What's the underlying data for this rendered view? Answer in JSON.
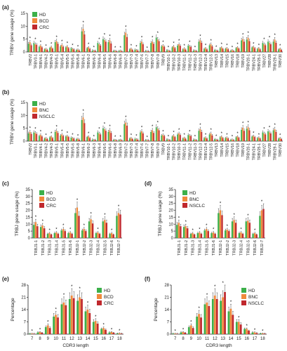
{
  "colors": {
    "hd": "#3cb04a",
    "g2": "#f08a3c",
    "g3": "#c0282d",
    "axis": "#222222",
    "star": "#000000"
  },
  "chart_data": [
    {
      "panel": "(a)",
      "type": "bar",
      "ylabel": "TRBV gene usage (%)",
      "yticks": [
        0,
        5,
        10,
        15
      ],
      "ylim": [
        0,
        15
      ],
      "legend": [
        "HD",
        "BCD",
        "CRC"
      ],
      "categories": [
        "TRBV2",
        "TRBV3-1",
        "TRBV4-1",
        "TRBV4-2",
        "TRBV4-3",
        "TRBV5-1",
        "TRBV5-4",
        "TRBV5-5",
        "TRBV5-6",
        "TRBV5-8",
        "TRBV6-1",
        "TRBV6-2",
        "TRBV6-3",
        "TRBV6-4",
        "TRBV6-5",
        "TRBV6-6",
        "TRBV6-8",
        "TRBV6-9",
        "TRBV7-2",
        "TRBV7-3",
        "TRBV7-4",
        "TRBV7-6",
        "TRBV7-7",
        "TRBV7-8",
        "TRBV7-9",
        "TRBV9",
        "TRBV10-1",
        "TRBV10-2",
        "TRBV10-3",
        "TRBV11-1",
        "TRBV11-2",
        "TRBV11-3",
        "TRBV12-3",
        "TRBV12-4",
        "TRBV12-5",
        "TRBV13",
        "TRBV14",
        "TRBV15",
        "TRBV16",
        "TRBV18",
        "TRBV19",
        "TRBV20-1",
        "TRBV24-1",
        "TRBV25-1",
        "TRBV27",
        "TRBV28",
        "TRBV29-1",
        "TRBV30"
      ],
      "series": [
        {
          "name": "HD",
          "values": [
            3.2,
            3.5,
            2.0,
            1.0,
            1.6,
            3.8,
            2.2,
            1.8,
            1.5,
            0.8,
            8.0,
            1.5,
            0.6,
            3.5,
            5.0,
            3.8,
            0.5,
            0.4,
            6.5,
            1.0,
            0.9,
            3.5,
            0.4,
            3.5,
            5.6,
            2.2,
            0.7,
            1.8,
            2.5,
            1.0,
            2.5,
            0.6,
            4.0,
            1.2,
            2.6,
            0.8,
            1.5,
            1.2,
            0.5,
            1.5,
            4.5,
            4.8,
            1.8,
            1.2,
            3.5,
            4.0,
            4.0,
            1.0
          ]
        },
        {
          "name": "BCD",
          "values": [
            3.8,
            3.0,
            2.5,
            1.2,
            2.0,
            4.2,
            2.8,
            2.2,
            1.2,
            0.9,
            9.0,
            1.8,
            0.4,
            3.0,
            4.6,
            4.5,
            0.4,
            0.5,
            7.5,
            1.3,
            0.7,
            4.0,
            0.3,
            4.0,
            4.8,
            2.5,
            0.5,
            2.2,
            3.0,
            1.4,
            2.2,
            0.5,
            4.5,
            1.5,
            3.0,
            0.5,
            1.8,
            1.5,
            0.7,
            1.8,
            5.0,
            5.5,
            2.0,
            1.5,
            3.0,
            3.5,
            4.8,
            1.3
          ]
        },
        {
          "name": "CRC",
          "values": [
            2.6,
            2.8,
            1.8,
            0.8,
            1.3,
            3.2,
            2.0,
            1.5,
            1.0,
            0.6,
            6.8,
            1.2,
            0.5,
            2.5,
            4.0,
            3.3,
            0.3,
            0.3,
            5.8,
            0.8,
            0.6,
            3.0,
            0.3,
            3.2,
            4.2,
            2.0,
            0.4,
            1.5,
            2.4,
            0.9,
            2.0,
            0.4,
            3.6,
            1.0,
            2.2,
            0.5,
            1.2,
            1.0,
            0.4,
            1.3,
            4.0,
            4.2,
            1.5,
            1.0,
            2.6,
            3.0,
            3.6,
            0.8
          ]
        }
      ]
    },
    {
      "panel": "(b)",
      "type": "bar",
      "ylabel": "TRBV gene usage (%)",
      "yticks": [
        0,
        5,
        10,
        15
      ],
      "ylim": [
        0,
        15
      ],
      "legend": [
        "HD",
        "BNC",
        "NSCLC"
      ],
      "categories": [
        "TRBV2",
        "TRBV3-1",
        "TRBV4-1",
        "TRBV4-2",
        "TRBV4-3",
        "TRBV5-1",
        "TRBV5-4",
        "TRBV5-5",
        "TRBV5-6",
        "TRBV5-8",
        "TRBV6-1",
        "TRBV6-2",
        "TRBV6-3",
        "TRBV6-4",
        "TRBV6-5",
        "TRBV6-6",
        "TRBV6-8",
        "TRBV6-9",
        "TRBV7-2",
        "TRBV7-3",
        "TRBV7-4",
        "TRBV7-6",
        "TRBV7-7",
        "TRBV7-8",
        "TRBV7-9",
        "TRBV9",
        "TRBV10-1",
        "TRBV10-2",
        "TRBV10-3",
        "TRBV11-1",
        "TRBV11-2",
        "TRBV11-3",
        "TRBV12-3",
        "TRBV12-4",
        "TRBV12-5",
        "TRBV13",
        "TRBV14",
        "TRBV15",
        "TRBV16",
        "TRBV18",
        "TRBV19",
        "TRBV20-1",
        "TRBV24-1",
        "TRBV25-1",
        "TRBV27",
        "TRBV28",
        "TRBV29-1",
        "TRBV30"
      ],
      "series": [
        {
          "name": "HD",
          "values": [
            3.0,
            3.4,
            2.0,
            1.0,
            1.5,
            3.6,
            2.2,
            1.8,
            1.4,
            0.8,
            8.2,
            1.6,
            0.6,
            3.4,
            5.0,
            3.6,
            0.5,
            0.4,
            6.6,
            1.0,
            0.9,
            3.4,
            0.4,
            3.6,
            5.4,
            2.2,
            0.7,
            1.8,
            2.6,
            1.0,
            2.4,
            0.6,
            4.0,
            1.2,
            2.6,
            0.8,
            1.5,
            1.2,
            0.5,
            1.5,
            4.4,
            4.8,
            1.8,
            1.2,
            3.4,
            3.8,
            4.2,
            1.0
          ]
        },
        {
          "name": "BNC",
          "values": [
            3.6,
            3.2,
            2.4,
            1.2,
            1.8,
            4.0,
            2.6,
            2.0,
            1.2,
            0.9,
            9.2,
            1.8,
            0.4,
            3.0,
            4.6,
            4.2,
            0.4,
            0.5,
            7.2,
            1.2,
            0.7,
            3.8,
            0.3,
            4.2,
            4.8,
            2.4,
            0.5,
            2.2,
            3.0,
            1.3,
            2.2,
            0.5,
            4.6,
            1.4,
            3.0,
            0.5,
            1.8,
            1.4,
            0.6,
            1.8,
            5.2,
            5.4,
            2.0,
            1.4,
            3.0,
            3.4,
            4.6,
            1.2
          ]
        },
        {
          "name": "NSCLC",
          "values": [
            2.8,
            2.8,
            1.8,
            0.8,
            1.2,
            3.2,
            2.0,
            1.6,
            1.0,
            0.6,
            7.0,
            1.2,
            0.5,
            2.6,
            4.0,
            3.2,
            0.3,
            0.3,
            6.0,
            0.8,
            0.6,
            3.0,
            0.3,
            3.2,
            4.2,
            2.0,
            0.4,
            1.6,
            2.4,
            0.9,
            2.0,
            0.4,
            3.6,
            1.0,
            2.2,
            0.5,
            1.2,
            1.0,
            0.4,
            1.3,
            4.0,
            4.2,
            1.6,
            1.0,
            2.6,
            3.0,
            3.6,
            0.8
          ]
        }
      ]
    },
    {
      "panel": "(c)",
      "type": "bar",
      "ylabel": "TRBJ gene usage (%)",
      "yticks": [
        0,
        5,
        10,
        15,
        20,
        25,
        30,
        35
      ],
      "ylim": [
        0,
        35
      ],
      "legend": [
        "HD",
        "BCD",
        "CRC"
      ],
      "categories": [
        "TRBJ1-1",
        "TRBJ1-2",
        "TRBJ1-3",
        "TRBJ1-4",
        "TRBJ1-5",
        "TRBJ1-6",
        "TRBJ2-1",
        "TRBJ2-2",
        "TRBJ2-3",
        "TRBJ2-4",
        "TRBJ2-5",
        "TRBJ2-6",
        "TRBJ2-7"
      ],
      "series": [
        {
          "name": "HD",
          "values": [
            9.5,
            8.0,
            3.0,
            3.5,
            5.5,
            3.5,
            18.0,
            5.5,
            12.0,
            3.5,
            12.0,
            3.0,
            16.0
          ]
        },
        {
          "name": "BCD",
          "values": [
            11.5,
            9.0,
            3.5,
            4.0,
            6.5,
            4.0,
            22.0,
            6.5,
            13.5,
            4.0,
            13.0,
            3.5,
            18.0
          ]
        },
        {
          "name": "CRC",
          "values": [
            8.5,
            7.0,
            2.5,
            3.0,
            5.0,
            3.0,
            16.0,
            5.0,
            10.5,
            3.0,
            11.0,
            2.5,
            17.0
          ]
        }
      ]
    },
    {
      "panel": "(d)",
      "type": "bar",
      "ylabel": "TRBJ gene usage (%)",
      "yticks": [
        0,
        5,
        10,
        15,
        20,
        25,
        30,
        35
      ],
      "ylim": [
        0,
        35
      ],
      "legend": [
        "HD",
        "BNC",
        "NSCLC"
      ],
      "categories": [
        "TRBJ1-1",
        "TRBJ1-2",
        "TRBJ1-3",
        "TRBJ1-4",
        "TRBJ1-5",
        "TRBJ1-6",
        "TRBJ2-1",
        "TRBJ2-2",
        "TRBJ2-3",
        "TRBJ2-4",
        "TRBJ2-5",
        "TRBJ2-6",
        "TRBJ2-7"
      ],
      "series": [
        {
          "name": "HD",
          "values": [
            9.5,
            8.0,
            3.0,
            3.5,
            5.5,
            3.5,
            18.0,
            5.5,
            12.0,
            3.5,
            12.0,
            3.0,
            16.0
          ]
        },
        {
          "name": "BNC",
          "values": [
            11.0,
            8.5,
            3.5,
            4.0,
            6.5,
            4.0,
            20.0,
            6.0,
            13.0,
            4.0,
            12.5,
            3.5,
            20.0
          ]
        },
        {
          "name": "NSCLC",
          "values": [
            8.5,
            7.0,
            2.5,
            3.0,
            5.0,
            3.0,
            16.5,
            5.0,
            11.0,
            3.0,
            11.0,
            2.5,
            21.0
          ]
        }
      ]
    },
    {
      "panel": "(e)",
      "type": "bar",
      "ylabel": "Percentage",
      "xlabel": "CDR3 length",
      "yticks": [
        0,
        7,
        14,
        21,
        28
      ],
      "ylim": [
        0,
        28
      ],
      "legend": [
        "HD",
        "BCD",
        "CRC"
      ],
      "categories": [
        "7",
        "8",
        "9",
        "10",
        "11",
        "12",
        "13",
        "14",
        "15",
        "16",
        "17",
        "18"
      ],
      "series": [
        {
          "name": "HD",
          "values": [
            0.3,
            1.0,
            4.0,
            10.0,
            17.0,
            20.0,
            19.0,
            13.0,
            7.0,
            3.0,
            1.0,
            0.4
          ]
        },
        {
          "name": "BCD",
          "values": [
            0.3,
            1.2,
            5.0,
            11.0,
            18.0,
            22.0,
            21.0,
            14.0,
            7.5,
            3.5,
            1.2,
            0.5
          ]
        },
        {
          "name": "CRC",
          "values": [
            0.2,
            0.8,
            3.5,
            9.5,
            16.5,
            20.5,
            20.0,
            12.0,
            6.0,
            2.5,
            0.8,
            0.3
          ]
        }
      ]
    },
    {
      "panel": "(f)",
      "type": "bar",
      "ylabel": "Percentage",
      "xlabel": "CDR3 length",
      "yticks": [
        0,
        7,
        14,
        21,
        28
      ],
      "ylim": [
        0,
        28
      ],
      "legend": [
        "HD",
        "BNC",
        "NSCLC"
      ],
      "categories": [
        "7",
        "8",
        "9",
        "10",
        "11",
        "12",
        "13",
        "14",
        "15",
        "16",
        "17",
        "18"
      ],
      "series": [
        {
          "name": "HD",
          "values": [
            0.3,
            1.0,
            4.0,
            10.0,
            17.0,
            20.0,
            19.0,
            13.0,
            7.0,
            3.0,
            1.0,
            0.4
          ]
        },
        {
          "name": "BNC",
          "values": [
            0.3,
            1.2,
            5.0,
            11.5,
            18.0,
            22.0,
            21.0,
            14.5,
            7.0,
            3.0,
            1.0,
            0.4
          ]
        },
        {
          "name": "NSCLC",
          "values": [
            0.2,
            0.8,
            3.5,
            9.5,
            16.0,
            20.0,
            24.0,
            11.0,
            5.5,
            2.0,
            0.6,
            0.3
          ]
        }
      ]
    }
  ]
}
